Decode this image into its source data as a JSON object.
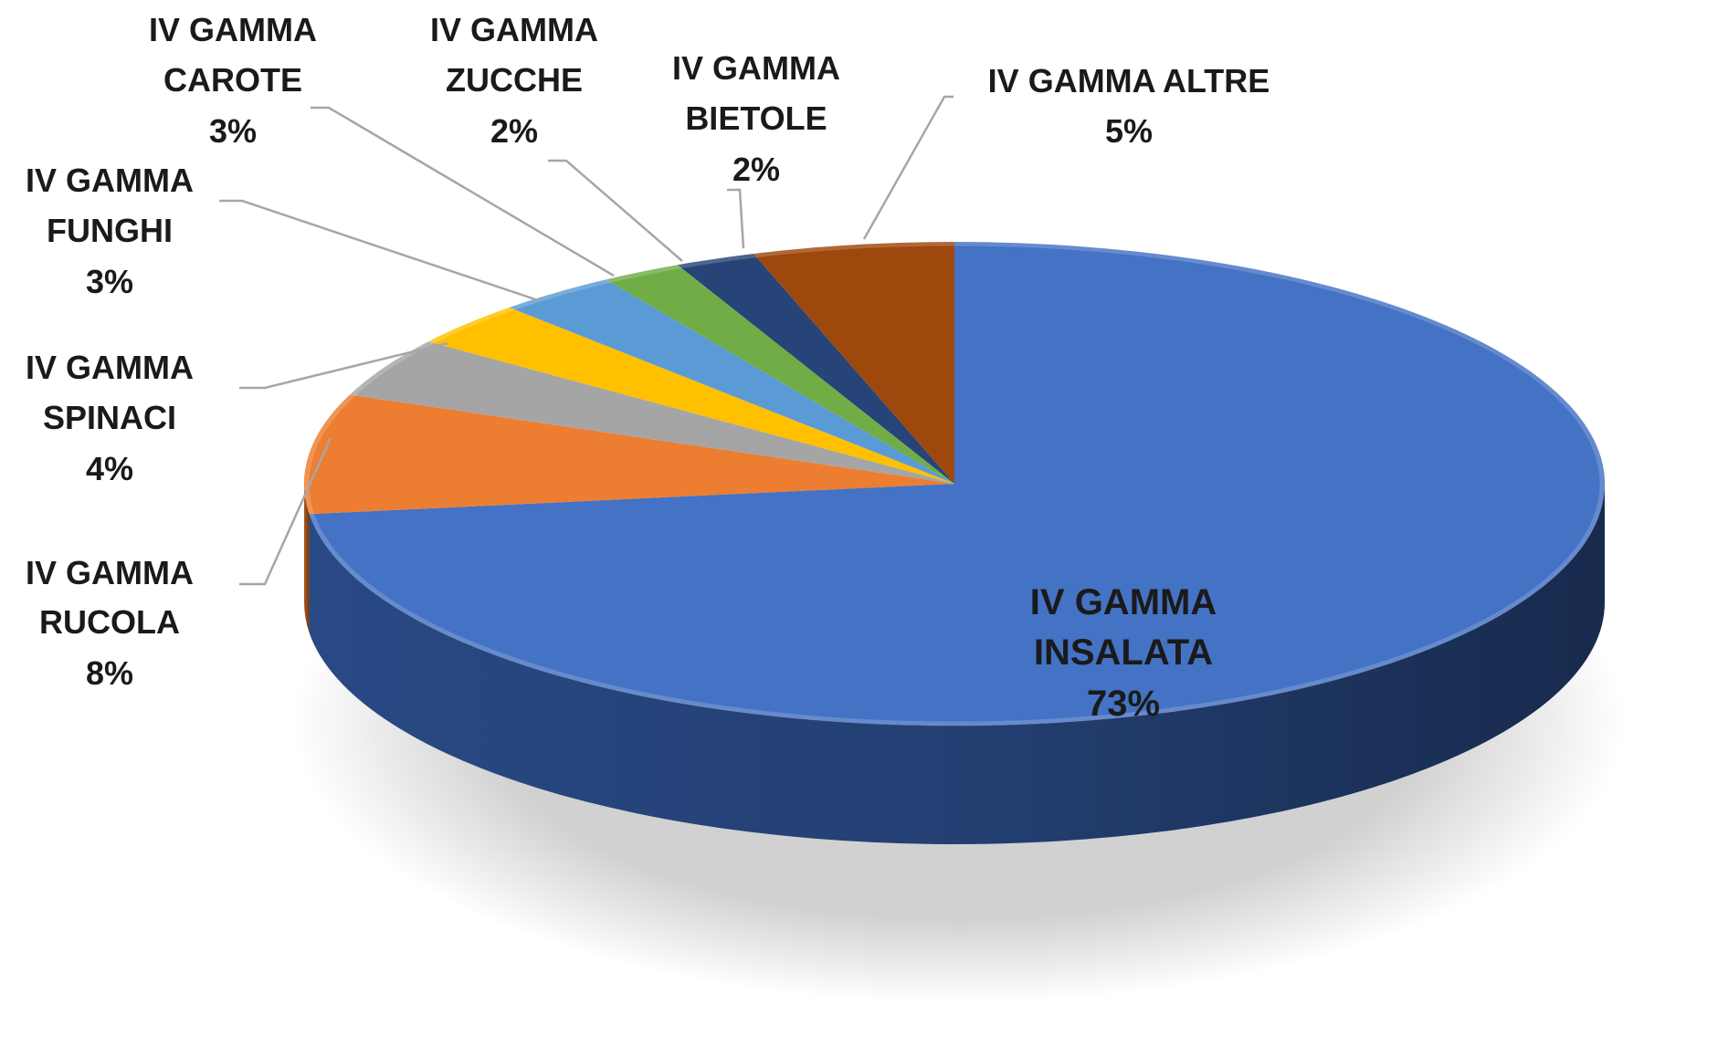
{
  "chart_data": {
    "type": "pie",
    "style": "3d",
    "title": "",
    "slices": [
      {
        "category": "IV GAMMA INSALATA",
        "value_label": "73%",
        "value": 73,
        "color": "#4472C4",
        "side_color": "#2B4D8C"
      },
      {
        "category": "IV GAMMA RUCOLA",
        "value_label": "8%",
        "value": 8,
        "color": "#ED7D31",
        "side_color": "#B35A1E"
      },
      {
        "category": "IV GAMMA SPINACI",
        "value_label": "4%",
        "value": 4,
        "color": "#A5A5A5",
        "side_color": "#7A7A7A"
      },
      {
        "category": "IV GAMMA FUNGHI",
        "value_label": "3%",
        "value": 3,
        "color": "#FFC000",
        "side_color": "#C79500"
      },
      {
        "category": "IV GAMMA CAROTE",
        "value_label": "3%",
        "value": 3,
        "color": "#5B9BD5",
        "side_color": "#3A6F9E"
      },
      {
        "category": "IV GAMMA ZUCCHE",
        "value_label": "2%",
        "value": 2,
        "color": "#70AD47",
        "side_color": "#4E7E30"
      },
      {
        "category": "IV GAMMA BIETOLE",
        "value_label": "2%",
        "value": 2,
        "color": "#264478",
        "side_color": "#172B4D"
      },
      {
        "category": "IV GAMMA ALTRE",
        "value_label": "5%",
        "value": 5,
        "color": "#9E480E",
        "side_color": "#6B300A"
      }
    ],
    "legend": "none",
    "data_labels": "category-and-percentage"
  }
}
